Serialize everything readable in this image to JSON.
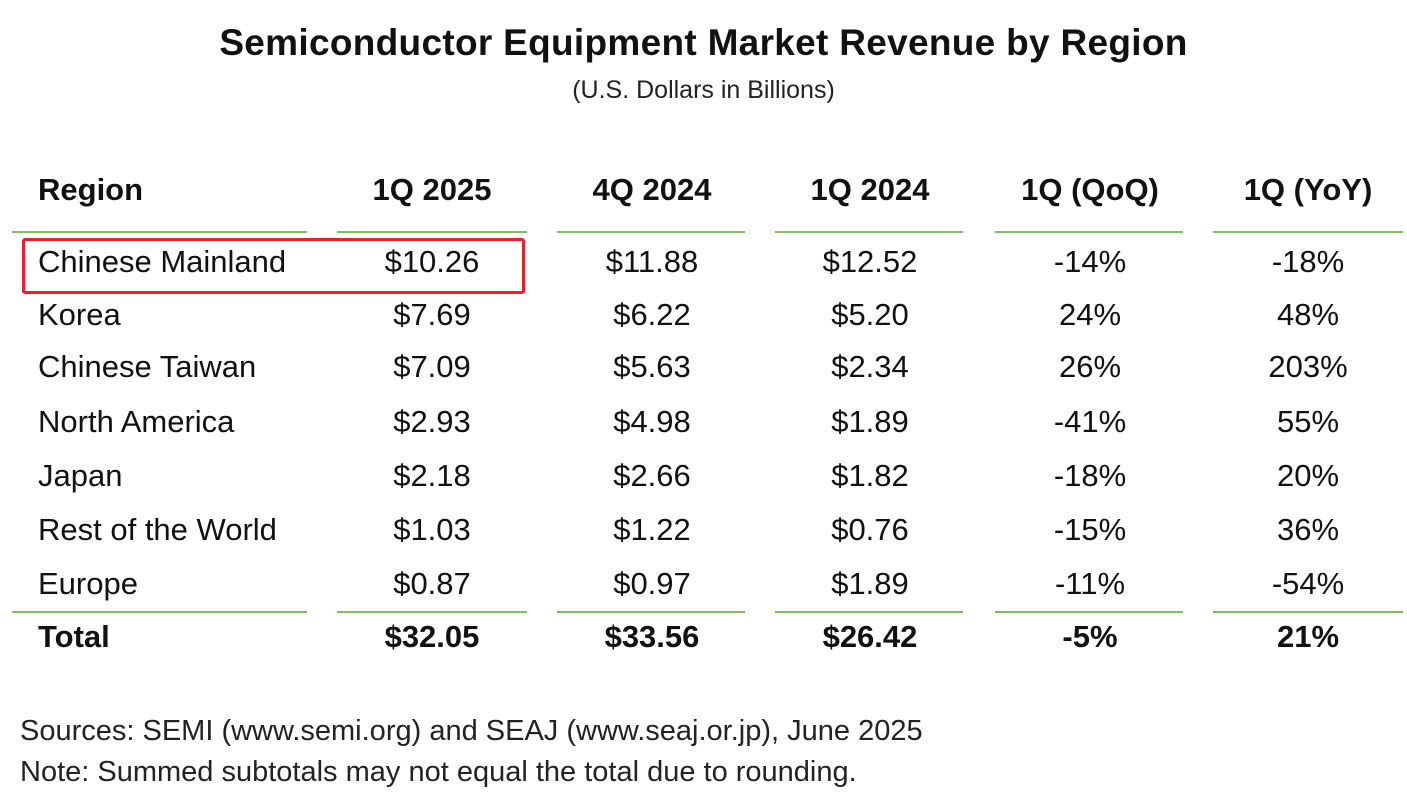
{
  "chart_data": {
    "type": "table",
    "title": "Semiconductor Equipment Market Revenue by Region",
    "subtitle": "(U.S. Dollars in Billions)",
    "columns": [
      "Region",
      "1Q 2025",
      "4Q 2024",
      "1Q 2024",
      "1Q (QoQ)",
      "1Q (YoY)"
    ],
    "rows": [
      [
        "Chinese Mainland",
        "$10.26",
        "$11.88",
        "$12.52",
        "-14%",
        "-18%"
      ],
      [
        "Korea",
        "$7.69",
        "$6.22",
        "$5.20",
        "24%",
        "48%"
      ],
      [
        "Chinese Taiwan",
        "$7.09",
        "$5.63",
        "$2.34",
        "26%",
        "203%"
      ],
      [
        "North America",
        "$2.93",
        "$4.98",
        "$1.89",
        "-41%",
        "55%"
      ],
      [
        "Japan",
        "$2.18",
        "$2.66",
        "$1.82",
        "-18%",
        "20%"
      ],
      [
        "Rest of the World",
        "$1.03",
        "$1.22",
        "$0.76",
        "-15%",
        "36%"
      ],
      [
        "Europe",
        "$0.87",
        "$0.97",
        "$1.89",
        "-11%",
        "-54%"
      ]
    ],
    "total": [
      "Total",
      "$32.05",
      "$33.56",
      "$26.42",
      "-5%",
      "21%"
    ],
    "highlight": {
      "row": 0,
      "columns": [
        0,
        1
      ],
      "color": "#e8212a"
    },
    "rule_color": "#7fbf5e"
  },
  "footer": {
    "sources": "Sources: SEMI (www.semi.org) and SEAJ (www.seaj.or.jp), June 2025",
    "note": "Note: Summed subtotals may not equal the total due to rounding."
  }
}
